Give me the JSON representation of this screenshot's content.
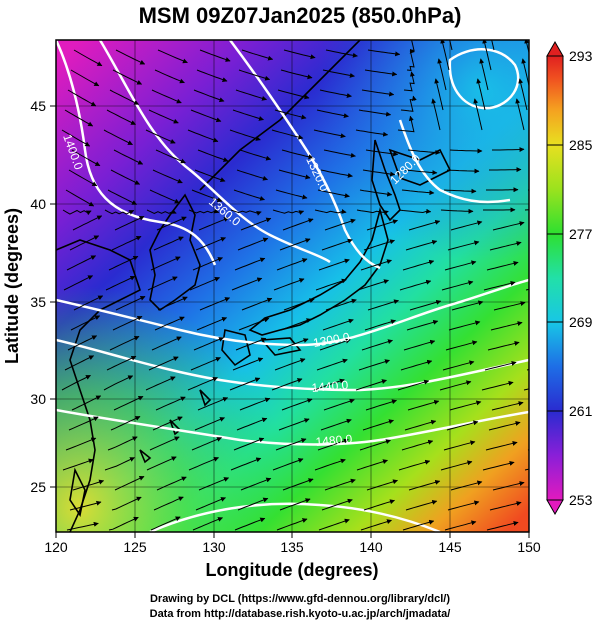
{
  "title": "MSM 09Z07Jan2025 (850.0hPa)",
  "xlabel": "Longitude (degrees)",
  "ylabel": "Latitude  (degrees)",
  "credit_line1": "Drawing by DCL (https://www.gfd-dennou.org/library/dcl/)",
  "credit_line2": "Data from http://database.rish.kyoto-u.ac.jp/arch/jmadata/",
  "chart_data": {
    "type": "heatmap",
    "x_range": [
      120,
      150
    ],
    "y_range": [
      22.4,
      47.6
    ],
    "x_ticks": [
      "120",
      "125",
      "130",
      "135",
      "140",
      "145",
      "150"
    ],
    "y_ticks": [
      "25",
      "30",
      "35",
      "40",
      "45"
    ],
    "colorbar": {
      "range": [
        253,
        293
      ],
      "ticks": [
        "293",
        "285",
        "277",
        "269",
        "261",
        "253"
      ],
      "colors": [
        "#e21abe",
        "#8a1fd8",
        "#2a2bd0",
        "#1e6ee6",
        "#18c6e6",
        "#22e0a8",
        "#2ee030",
        "#9be21e",
        "#e8e020",
        "#f5a020",
        "#f05020",
        "#e02020"
      ]
    },
    "contour_labels": [
      {
        "text": "1400.0"
      },
      {
        "text": "1360.0"
      },
      {
        "text": "1320.0"
      },
      {
        "text": "1280.0"
      },
      {
        "text": "1300.0"
      },
      {
        "text": "1440.0"
      },
      {
        "text": "1480.0"
      }
    ]
  }
}
